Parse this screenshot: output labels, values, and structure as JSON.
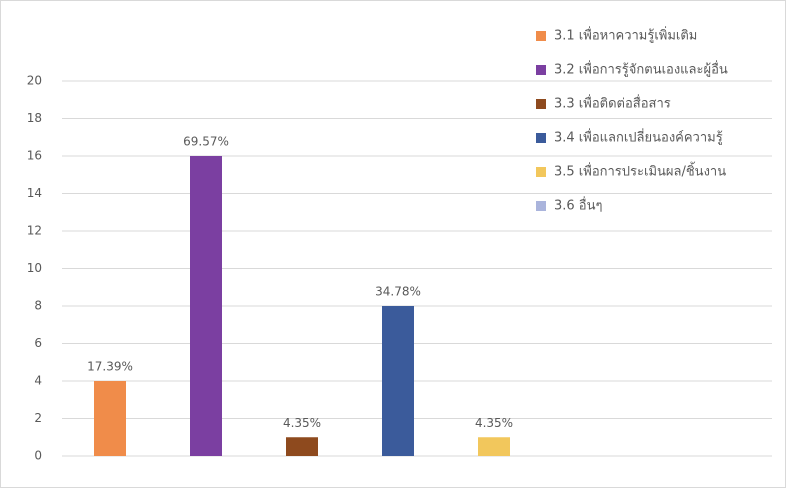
{
  "chart_data": {
    "type": "bar",
    "categories": [
      "3.1 เพื่อหาความรู้เพิ่มเติม",
      "3.2 เพื่อการรู้จักตนเองและผู้อื่น",
      "3.3 เพื่อติดต่อสื่อสาร",
      "3.4 เพื่อแลกเปลี่ยนองค์ความรู้",
      "3.5 เพื่อการประเมินผล/ชิ้นงาน",
      "3.6 อื่นๆ"
    ],
    "values": [
      4,
      16,
      1,
      8,
      1,
      0
    ],
    "value_labels": [
      "17.39%",
      "69.57%",
      "4.35%",
      "34.78%",
      "4.35%",
      null
    ],
    "colors": [
      "#f08c4a",
      "#7b3fa1",
      "#8e4a1e",
      "#3b5b9b",
      "#f2c75c",
      "#aab4dc"
    ],
    "ylim": [
      0,
      20
    ],
    "yticks": [
      0,
      2,
      4,
      6,
      8,
      10,
      12,
      14,
      16,
      18,
      20
    ],
    "grid": true
  }
}
